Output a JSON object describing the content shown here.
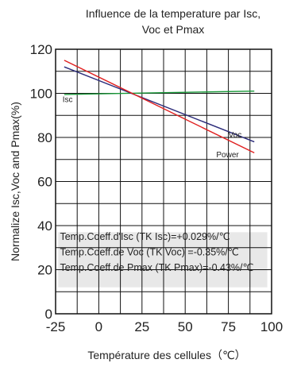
{
  "chart_data": {
    "type": "line",
    "title_lines": [
      "Influence de la temperature par Isc,",
      "Voc et Pmax"
    ],
    "xlabel": "Température des cellules（℃）",
    "ylabel": "Normalize Isc,Voc and Pmax(%)",
    "xlim": [
      -25,
      100
    ],
    "ylim": [
      0,
      120
    ],
    "x_ticks": [
      -25,
      0,
      25,
      50,
      75,
      100
    ],
    "x_tick_labels": [
      "-25",
      "0",
      "25",
      "50",
      "75",
      "100"
    ],
    "y_ticks": [
      0,
      20,
      40,
      60,
      80,
      100,
      120
    ],
    "y_tick_labels": [
      "0",
      "20",
      "40",
      "60",
      "80",
      "100",
      "120"
    ],
    "x_grid_step": 12.5,
    "y_grid_step": 10,
    "grid": true,
    "series": [
      {
        "name": "Isc",
        "color": "#1a9a3a",
        "x": [
          -20,
          90
        ],
        "y": [
          99.5,
          101
        ]
      },
      {
        "name": "Voc",
        "color": "#2c2c7a",
        "x": [
          -20,
          90
        ],
        "y": [
          112,
          78
        ]
      },
      {
        "name": "Power",
        "color": "#e02020",
        "x": [
          -20,
          90
        ],
        "y": [
          115,
          73
        ]
      }
    ],
    "annotations": [
      "Temp.Coeff.d'Isc (TK Isc)=+0.029%/℃",
      "Temp.Coeff.de Voc (TK Voc) =-0.35%/℃",
      "Temp.Coeff.de Pmax (TK Pmax)=-0.43%/℃"
    ]
  }
}
